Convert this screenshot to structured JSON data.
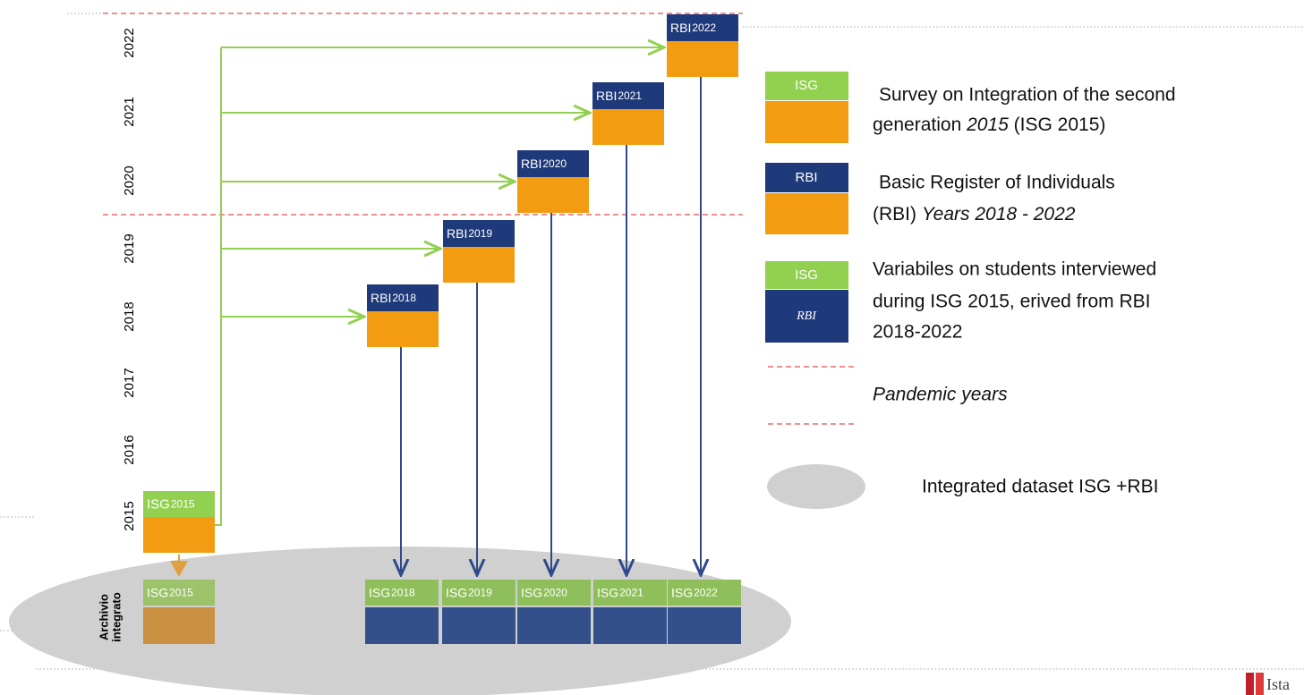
{
  "timeline": {
    "years": [
      "2022",
      "2021",
      "2020",
      "2019",
      "2018",
      "2017",
      "2016",
      "2015"
    ],
    "archive_label": [
      "Archivio",
      "integrato"
    ],
    "survey_box": {
      "label": "ISG",
      "year": "2015"
    },
    "register_boxes": [
      {
        "label": "RBI",
        "year": "2018"
      },
      {
        "label": "RBI",
        "year": "2019"
      },
      {
        "label": "RBI",
        "year": "2020"
      },
      {
        "label": "RBI",
        "year": "2021"
      },
      {
        "label": "RBI",
        "year": "2022"
      }
    ],
    "integrated_boxes": [
      {
        "label": "ISG",
        "year": "2015"
      },
      {
        "label": "ISG",
        "year": "2018"
      },
      {
        "label": "ISG",
        "year": "2019"
      },
      {
        "label": "ISG",
        "year": "2020"
      },
      {
        "label": "ISG",
        "year": "2021"
      },
      {
        "label": "ISG",
        "year": "2022"
      }
    ]
  },
  "legend": {
    "survey": {
      "box": "ISG",
      "line1": "Survey on Integration of the second",
      "line2_start": "generation ",
      "line2_italic": "2015",
      "line2_end": " (ISG 2015)"
    },
    "register": {
      "box": "RBI",
      "line1": "Basic Register of Individuals",
      "line2_start": "(RBI) ",
      "line2_italic": "Years 2018 - 2022"
    },
    "derived": {
      "box_top": "ISG",
      "box_bottom": "RBI",
      "lines": [
        "Variabiles on students interviewed",
        "during ISG 2015, erived from RBI",
        "2018-2022"
      ]
    },
    "pandemic": "Pandemic years",
    "integrated": "Integrated dataset ISG +RBI"
  },
  "logo": "Ista"
}
